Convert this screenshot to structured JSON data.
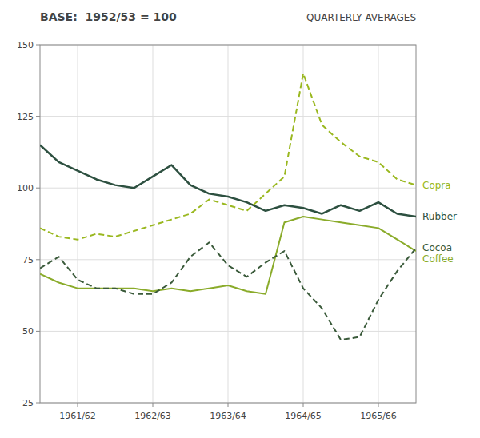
{
  "chart_data": {
    "type": "line",
    "title": "BASE:  1952/53 = 100",
    "subtitle": "QUARTERLY AVERAGES",
    "x": [
      0,
      1,
      2,
      3,
      4,
      5,
      6,
      7,
      8,
      9,
      10,
      11,
      12,
      13,
      14,
      15,
      16,
      17,
      18,
      19,
      20
    ],
    "xlim": [
      0,
      20
    ],
    "xticks": [
      {
        "value": 2,
        "label": "1961/62"
      },
      {
        "value": 6,
        "label": "1962/63"
      },
      {
        "value": 10,
        "label": "1963/64"
      },
      {
        "value": 14,
        "label": "1964/65"
      },
      {
        "value": 18,
        "label": "1965/66"
      }
    ],
    "ylim": [
      25,
      150
    ],
    "yticks": [
      25,
      50,
      75,
      100,
      125,
      150
    ],
    "grid": true,
    "series": [
      {
        "name": "Rubber",
        "color": "#2d5040",
        "line_style": "solid",
        "values": [
          115,
          109,
          106,
          103,
          101,
          100,
          104,
          108,
          101,
          98,
          97,
          95,
          92,
          94,
          93,
          91,
          94,
          92,
          95,
          91,
          90
        ]
      },
      {
        "name": "Coffee",
        "color": "#8aab2a",
        "line_style": "solid",
        "values": [
          70,
          67,
          65,
          65,
          65,
          65,
          64,
          65,
          64,
          65,
          66,
          64,
          63,
          88,
          90,
          89,
          88,
          87,
          86,
          82,
          78
        ]
      },
      {
        "name": "Copra",
        "color": "#9ab820",
        "line_style": "dashed",
        "values": [
          86,
          83,
          82,
          84,
          83,
          85,
          87,
          89,
          91,
          96,
          94,
          92,
          98,
          104,
          140,
          122,
          116,
          111,
          109,
          103,
          101
        ]
      },
      {
        "name": "Cocoa",
        "color": "#3a5a3a",
        "line_style": "dashed",
        "values": [
          72,
          76,
          68,
          65,
          65,
          63,
          63,
          67,
          76,
          81,
          73,
          69,
          74,
          78,
          65,
          58,
          47,
          48,
          61,
          71,
          79
        ]
      }
    ]
  }
}
